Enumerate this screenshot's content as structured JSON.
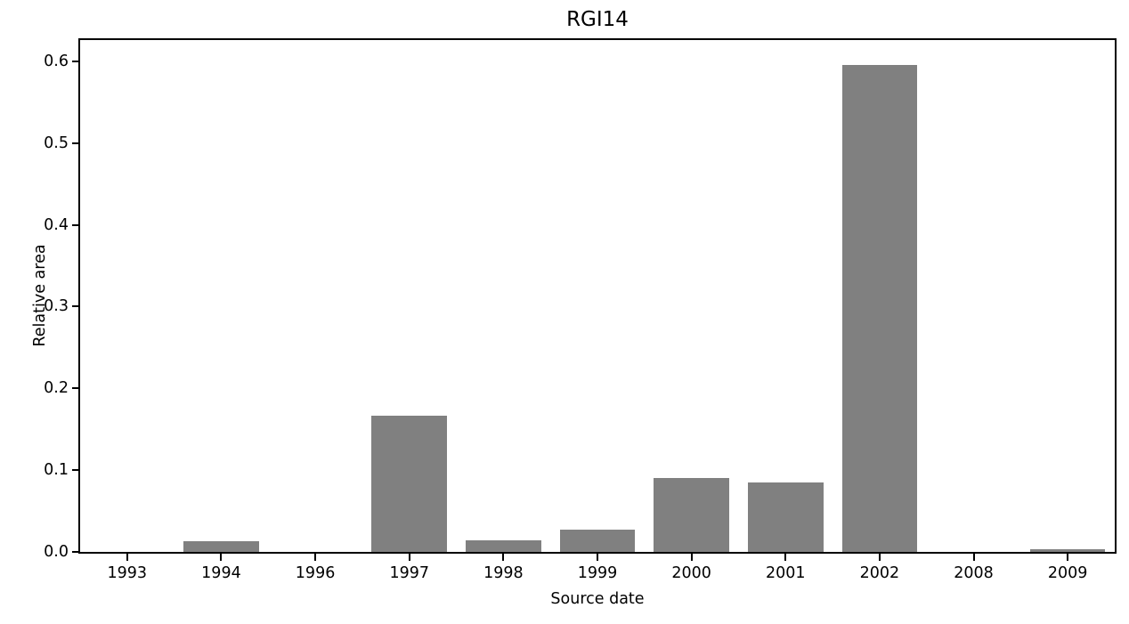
{
  "chart_data": {
    "type": "bar",
    "title": "RGI14",
    "xlabel": "Source date",
    "ylabel": "Relative area",
    "categories": [
      "1993",
      "1994",
      "1996",
      "1997",
      "1998",
      "1999",
      "2000",
      "2001",
      "2002",
      "2008",
      "2009"
    ],
    "values": [
      0.0,
      0.013,
      0.0,
      0.167,
      0.014,
      0.027,
      0.09,
      0.085,
      0.595,
      0.0,
      0.003
    ],
    "ylim": [
      0,
      0.626
    ],
    "ytick_values": [
      0.0,
      0.1,
      0.2,
      0.3,
      0.4,
      0.5,
      0.6
    ],
    "ytick_labels": [
      "0.0",
      "0.1",
      "0.2",
      "0.3",
      "0.4",
      "0.5",
      "0.6"
    ],
    "bar_color": "#808080",
    "bar_width_fraction": 0.8,
    "grid": false,
    "legend": "none",
    "axis_color": "#000000",
    "background_color": "#ffffff"
  }
}
